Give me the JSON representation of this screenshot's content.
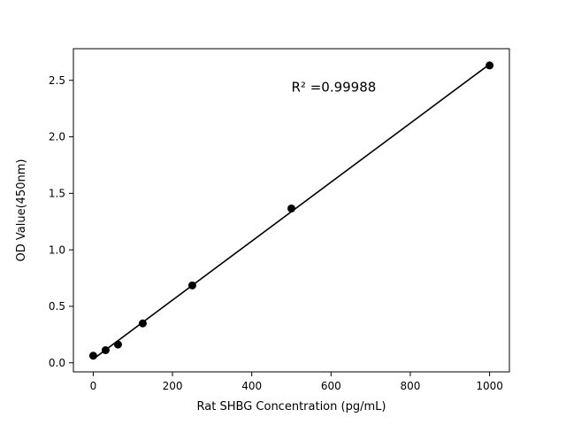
{
  "figure": {
    "background": "#ffffff"
  },
  "chart_data": {
    "type": "scatter",
    "title": "",
    "xlabel": "Rat SHBG Concentration (pg/mL)",
    "ylabel": "OD Value(450nm)",
    "x": [
      0,
      31.25,
      62.5,
      125,
      250,
      500,
      1000
    ],
    "y": [
      0.063,
      0.112,
      0.162,
      0.349,
      0.685,
      1.366,
      2.632
    ],
    "annotation": {
      "text": "R² =0.99988",
      "x": 500,
      "y": 2.4
    },
    "xlim": [
      -50,
      1050
    ],
    "ylim": [
      -0.08,
      2.78
    ],
    "xticks": {
      "values": [
        0,
        200,
        400,
        600,
        800,
        1000
      ],
      "labels": [
        "0",
        "200",
        "400",
        "600",
        "800",
        "1000"
      ]
    },
    "yticks": {
      "values": [
        0,
        0.5,
        1.0,
        1.5,
        2.0,
        2.5
      ],
      "labels": [
        "0.0",
        "0.5",
        "1.0",
        "1.5",
        "2.0",
        "2.5"
      ]
    },
    "marker_color": "#000000",
    "line_color": "#000000",
    "grid": false,
    "legend": null,
    "fit": "linear"
  }
}
